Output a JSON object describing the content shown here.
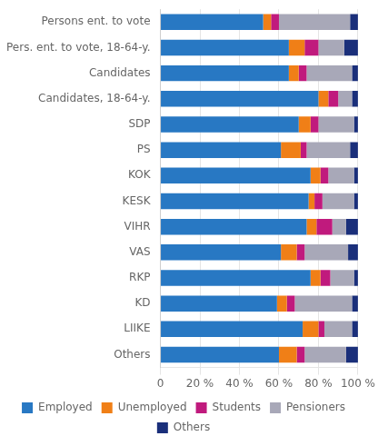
{
  "chart_data": {
    "type": "bar",
    "orientation": "horizontal",
    "stacked": true,
    "categories": [
      "Persons ent. to vote",
      "Pers. ent. to vote, 18-64-y.",
      "Candidates",
      "Candidates, 18-64-y.",
      "SDP",
      "PS",
      "KOK",
      "KESK",
      "VIHR",
      "VAS",
      "RKP",
      "KD",
      "LIIKE",
      "Others"
    ],
    "series": [
      {
        "name": "Employed",
        "color": "#2878c3",
        "values": [
          52,
          65,
          65,
          80,
          70,
          61,
          76,
          75,
          74,
          61,
          76,
          59,
          72,
          60
        ]
      },
      {
        "name": "Unemployed",
        "color": "#f07f17",
        "values": [
          4,
          8,
          5,
          5,
          6,
          10,
          5,
          3,
          5,
          8,
          5,
          5,
          8,
          9
        ]
      },
      {
        "name": "Students",
        "color": "#c01a7d",
        "values": [
          4,
          7,
          4,
          5,
          4,
          3,
          4,
          4,
          8,
          4,
          5,
          4,
          3,
          4
        ]
      },
      {
        "name": "Pensioners",
        "color": "#a8a8b8",
        "values": [
          36,
          13,
          23,
          7,
          18,
          22,
          13,
          16,
          7,
          22,
          12,
          29,
          14,
          21
        ]
      },
      {
        "name": "Others",
        "color": "#1a2f7a",
        "values": [
          4,
          7,
          3,
          3,
          2,
          4,
          2,
          2,
          6,
          5,
          2,
          3,
          3,
          6
        ]
      }
    ],
    "xlim": [
      0,
      100
    ],
    "xticks": [
      0,
      {
        "value": 20,
        "label": "20 %"
      },
      {
        "value": 40,
        "label": "40 %"
      },
      {
        "value": 60,
        "label": "60 %"
      },
      {
        "value": 80,
        "label": "80 %"
      },
      {
        "value": 100,
        "label": "100 %"
      }
    ],
    "grid": true,
    "legend": "bottom"
  }
}
